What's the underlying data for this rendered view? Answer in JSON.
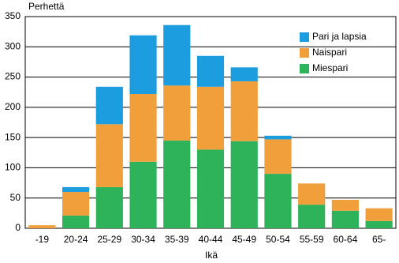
{
  "chart_data": {
    "type": "stacked_bar",
    "y_label": "Perhettä",
    "x_label": "Ikä",
    "categories": [
      "-19",
      "20-24",
      "25-29",
      "30-34",
      "35-39",
      "40-44",
      "45-49",
      "50-54",
      "55-59",
      "60-64",
      "65-"
    ],
    "series": [
      {
        "name": "Miespari",
        "color": "#2eb35a",
        "values": [
          0,
          21,
          68,
          110,
          145,
          130,
          144,
          90,
          39,
          29,
          12
        ]
      },
      {
        "name": "Naispari",
        "color": "#f19f3a",
        "values": [
          5,
          39,
          104,
          112,
          91,
          104,
          99,
          57,
          35,
          18,
          21
        ]
      },
      {
        "name": "Pari ja lapsia",
        "color": "#1c9de0",
        "values": [
          0,
          8,
          62,
          97,
          100,
          51,
          23,
          6,
          0,
          0,
          0
        ]
      }
    ],
    "ylim": [
      0,
      350
    ],
    "yticks": [
      0,
      50,
      100,
      150,
      200,
      250,
      300,
      350
    ],
    "grid": true
  }
}
